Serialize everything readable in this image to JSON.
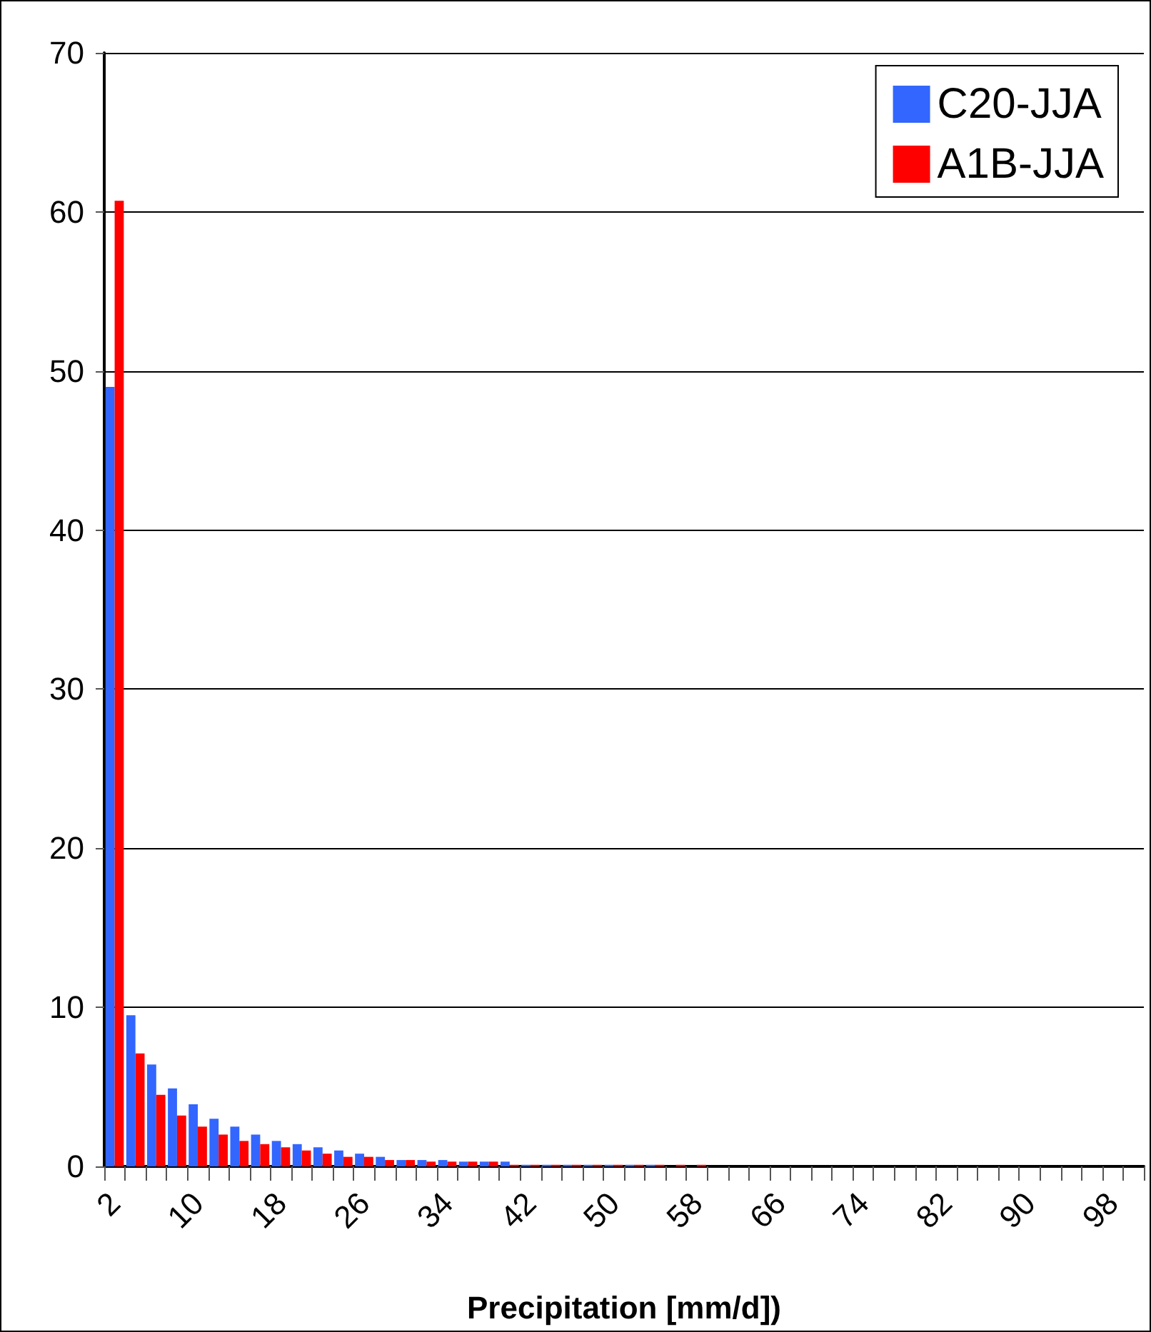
{
  "chart_data": {
    "type": "bar",
    "xlabel": "Precipitation [mm/d])",
    "categories": [
      "2",
      null,
      null,
      null,
      "10",
      null,
      null,
      null,
      "18",
      null,
      null,
      null,
      "26",
      null,
      null,
      null,
      "34",
      null,
      null,
      null,
      "42",
      null,
      null,
      null,
      "50",
      null,
      null,
      null,
      "58",
      null,
      null,
      null,
      "66",
      null,
      null,
      null,
      "74",
      null,
      null,
      null,
      "82",
      null,
      null,
      null,
      "90",
      null,
      null,
      null,
      "98",
      null
    ],
    "series": [
      {
        "name": "C20-JJA",
        "color": "#3366ff",
        "values": [
          49,
          9.5,
          6.4,
          4.9,
          3.9,
          3.0,
          2.5,
          2.0,
          1.6,
          1.4,
          1.2,
          1.0,
          0.8,
          0.6,
          0.4,
          0.4,
          0.4,
          0.3,
          0.3,
          0.3,
          0.1,
          0.1,
          0.1,
          0.1,
          0.1,
          0.1,
          0.1,
          0,
          0,
          0,
          0,
          0,
          0,
          0,
          0,
          0,
          0,
          0,
          0,
          0,
          0,
          0,
          0,
          0,
          0,
          0,
          0,
          0,
          0,
          0
        ]
      },
      {
        "name": "A1B-JJA",
        "color": "#ff0000",
        "values": [
          60.7,
          7.1,
          4.5,
          3.2,
          2.5,
          2.0,
          1.6,
          1.4,
          1.2,
          1.0,
          0.8,
          0.6,
          0.6,
          0.4,
          0.4,
          0.3,
          0.3,
          0.3,
          0.3,
          0.1,
          0.1,
          0.1,
          0.1,
          0.1,
          0.1,
          0.1,
          0.1,
          0.1,
          0.1,
          0,
          0,
          0,
          0,
          0,
          0,
          0,
          0,
          0,
          0,
          0,
          0,
          0,
          0,
          0,
          0,
          0,
          0,
          0,
          0,
          0
        ]
      }
    ],
    "ylim": [
      0,
      70
    ],
    "yticks": [
      0,
      10,
      20,
      30,
      40,
      50,
      60,
      70
    ],
    "grid": "y",
    "legend": "top right"
  }
}
